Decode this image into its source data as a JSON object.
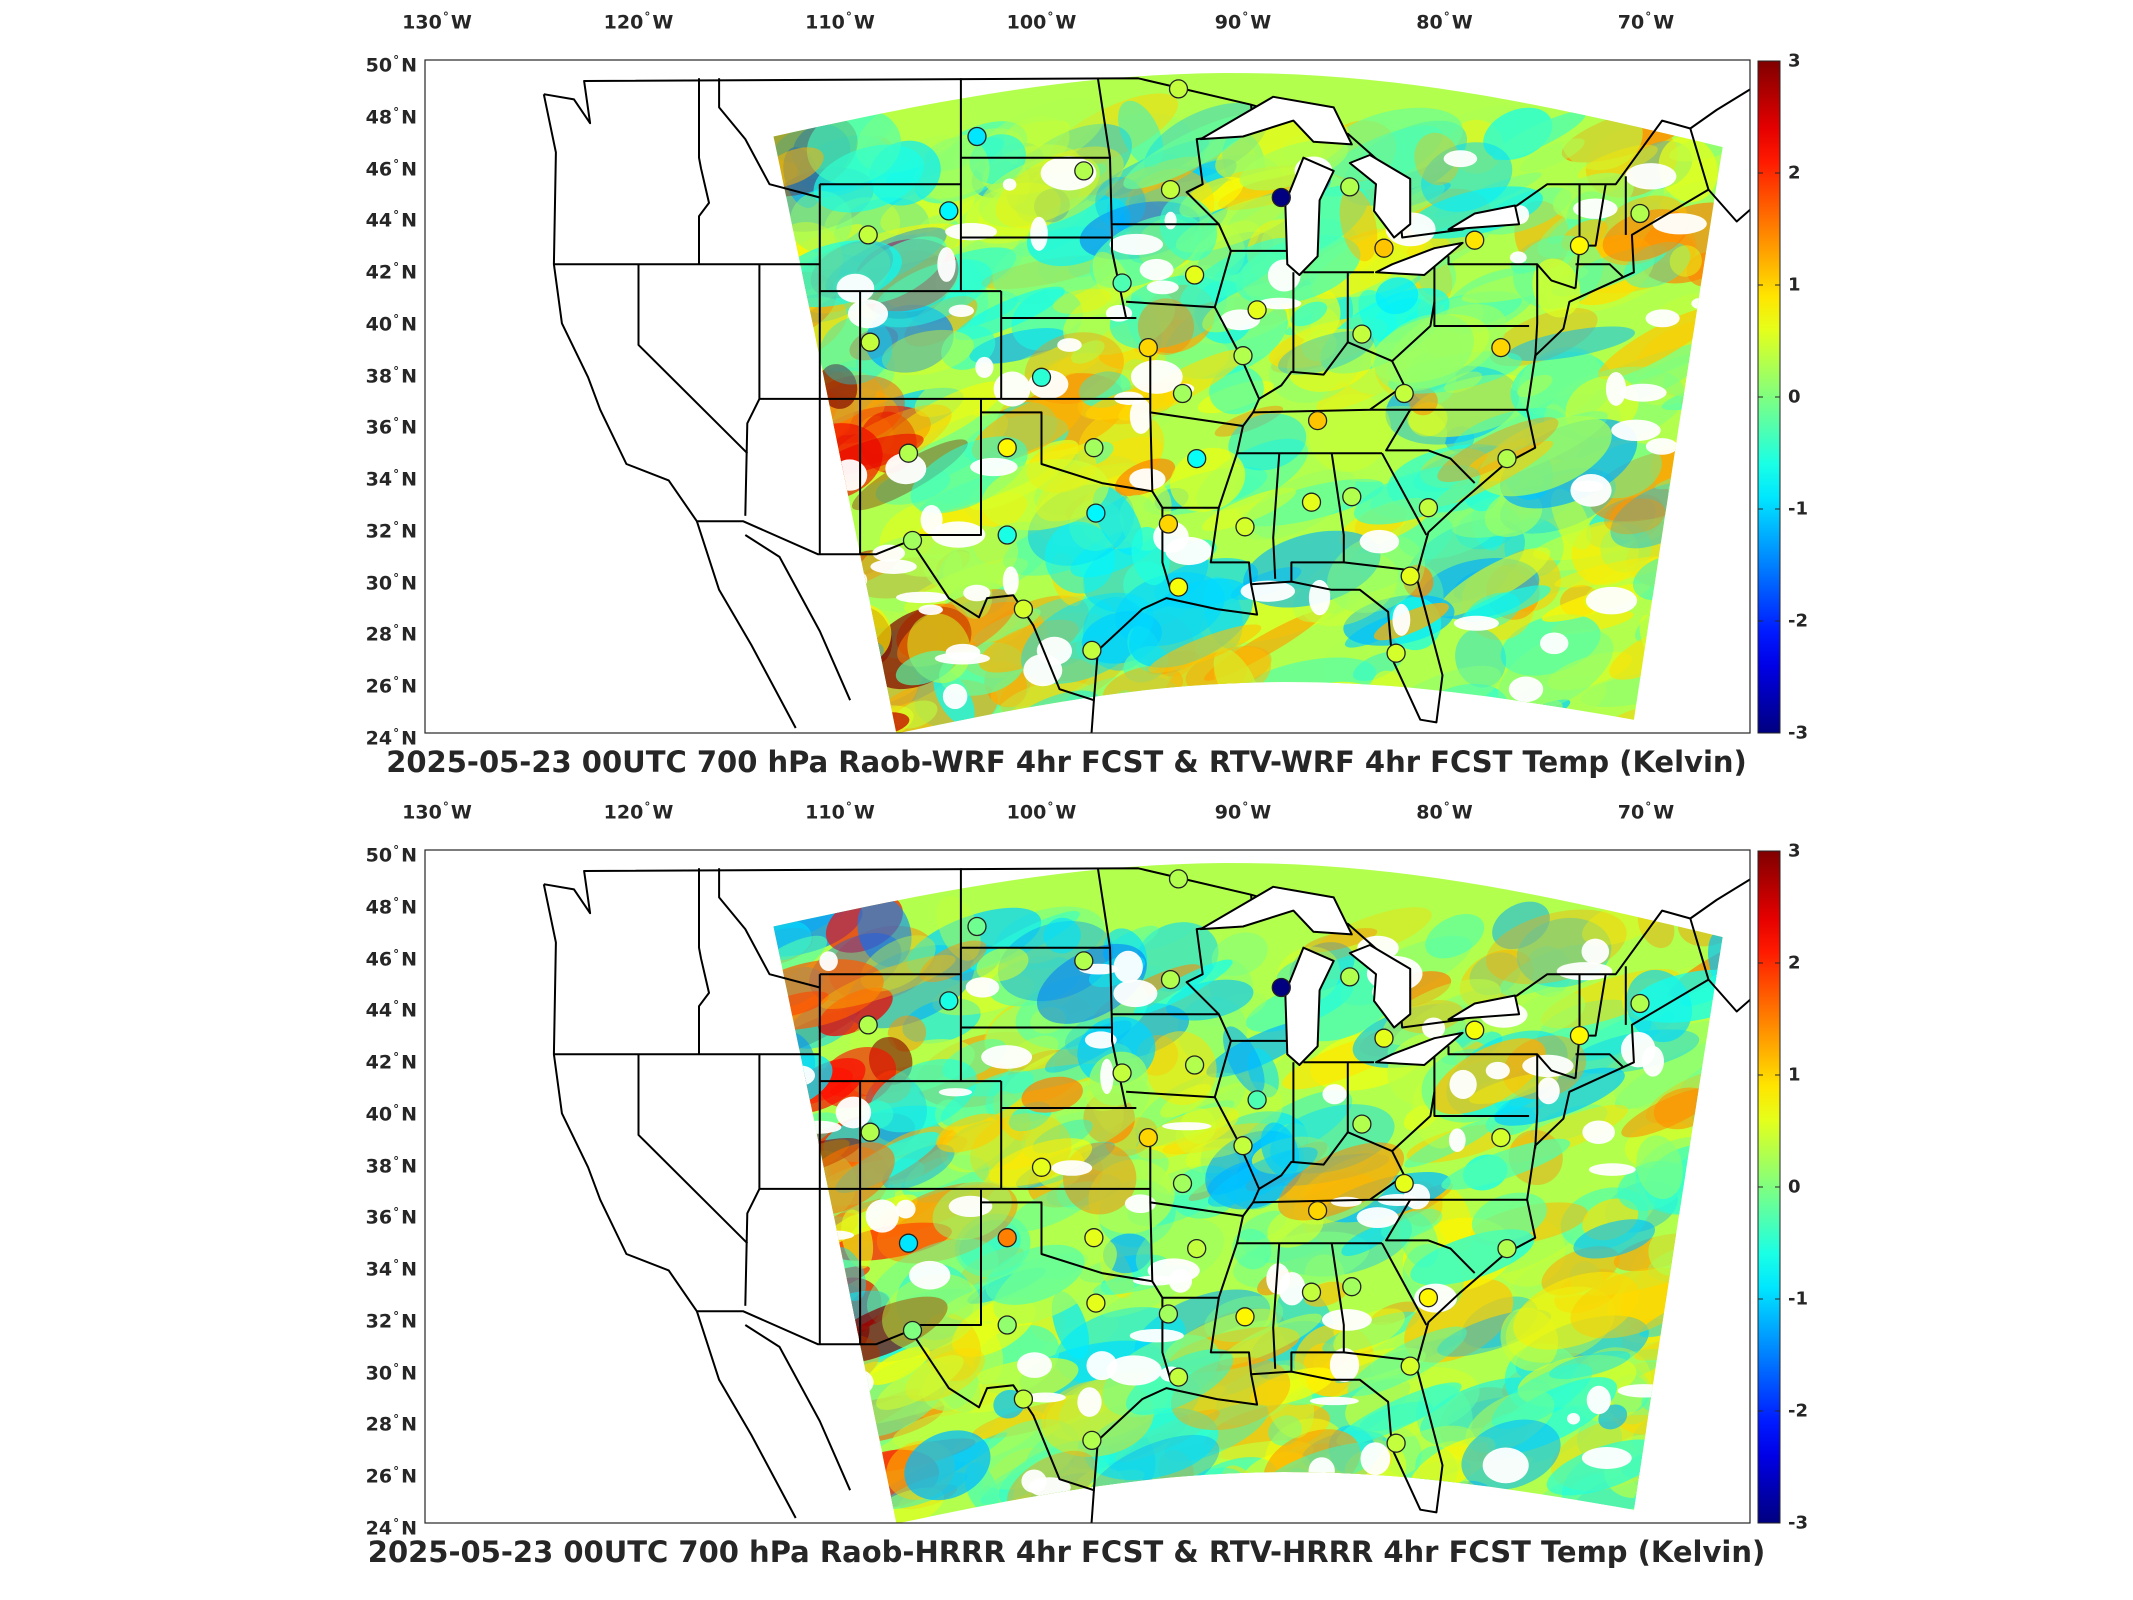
{
  "panels": [
    {
      "id": "wrf",
      "title": "2025-05-23 00UTC 700 hPa Raob-WRF 4hr FCST & RTV-WRF 4hr FCST Temp (Kelvin)",
      "seed": 17
    },
    {
      "id": "hrrr",
      "title": "2025-05-23 00UTC 700 hPa Raob-HRRR 4hr FCST & RTV-HRRR 4hr FCST Temp (Kelvin)",
      "seed": 53
    }
  ],
  "axes": {
    "lon_ticks": [
      {
        "value": -130,
        "label": "130",
        "hemi": "W"
      },
      {
        "value": -120,
        "label": "120",
        "hemi": "W"
      },
      {
        "value": -110,
        "label": "110",
        "hemi": "W"
      },
      {
        "value": -100,
        "label": "100",
        "hemi": "W"
      },
      {
        "value": -90,
        "label": "90",
        "hemi": "W"
      },
      {
        "value": -80,
        "label": "80",
        "hemi": "W"
      },
      {
        "value": -70,
        "label": "70",
        "hemi": "W"
      }
    ],
    "lat_ticks": [
      {
        "value": 50,
        "label": "50",
        "hemi": "N"
      },
      {
        "value": 48,
        "label": "48",
        "hemi": "N"
      },
      {
        "value": 46,
        "label": "46",
        "hemi": "N"
      },
      {
        "value": 44,
        "label": "44",
        "hemi": "N"
      },
      {
        "value": 42,
        "label": "42",
        "hemi": "N"
      },
      {
        "value": 40,
        "label": "40",
        "hemi": "N"
      },
      {
        "value": 38,
        "label": "38",
        "hemi": "N"
      },
      {
        "value": 36,
        "label": "36",
        "hemi": "N"
      },
      {
        "value": 34,
        "label": "34",
        "hemi": "N"
      },
      {
        "value": 32,
        "label": "32",
        "hemi": "N"
      },
      {
        "value": 30,
        "label": "30",
        "hemi": "N"
      },
      {
        "value": 28,
        "label": "28",
        "hemi": "N"
      },
      {
        "value": 26,
        "label": "26",
        "hemi": "N"
      },
      {
        "value": 24,
        "label": "24",
        "hemi": "N"
      }
    ]
  },
  "colorbar": {
    "min": -3,
    "max": 3,
    "colormap": "jet",
    "tick_values": [
      3,
      2,
      1,
      0,
      -1,
      -2,
      -3
    ],
    "tick_labels": [
      "3",
      "2",
      "1",
      "0",
      "-1",
      "-2",
      "-3"
    ]
  },
  "colors": {
    "border": "#000000",
    "marker_edge": "#222222"
  },
  "stations": {
    "wrf": [
      {
        "lon": -103.2,
        "lat": 46.8,
        "value": -0.9
      },
      {
        "lon": -97.9,
        "lat": 45.5,
        "value": 0.3
      },
      {
        "lon": -93.6,
        "lat": 44.8,
        "value": 0.4
      },
      {
        "lon": -88.1,
        "lat": 44.5,
        "value": -3.0
      },
      {
        "lon": -84.7,
        "lat": 44.9,
        "value": 0.3
      },
      {
        "lon": -93.2,
        "lat": 48.6,
        "value": 0.4
      },
      {
        "lon": -108.6,
        "lat": 43.1,
        "value": 0.4
      },
      {
        "lon": -104.6,
        "lat": 44.0,
        "value": -0.8
      },
      {
        "lon": -96.0,
        "lat": 41.3,
        "value": -0.3
      },
      {
        "lon": -92.4,
        "lat": 41.6,
        "value": 0.6
      },
      {
        "lon": -89.3,
        "lat": 40.3,
        "value": 0.6
      },
      {
        "lon": -84.1,
        "lat": 39.4,
        "value": 0.4
      },
      {
        "lon": -83.0,
        "lat": 42.6,
        "value": 1.1
      },
      {
        "lon": -78.5,
        "lat": 42.9,
        "value": 0.9
      },
      {
        "lon": -73.3,
        "lat": 42.7,
        "value": 0.8
      },
      {
        "lon": -70.3,
        "lat": 43.9,
        "value": 0.3
      },
      {
        "lon": -108.5,
        "lat": 39.1,
        "value": 0.4
      },
      {
        "lon": -100.0,
        "lat": 37.8,
        "value": -0.5
      },
      {
        "lon": -94.7,
        "lat": 38.9,
        "value": 1.0
      },
      {
        "lon": -90.0,
        "lat": 38.6,
        "value": 0.3
      },
      {
        "lon": -86.3,
        "lat": 36.2,
        "value": 1.1
      },
      {
        "lon": -82.0,
        "lat": 37.2,
        "value": 0.4
      },
      {
        "lon": -77.2,
        "lat": 38.9,
        "value": 1.0
      },
      {
        "lon": -106.6,
        "lat": 35.0,
        "value": 0.3
      },
      {
        "lon": -101.7,
        "lat": 35.2,
        "value": 0.8
      },
      {
        "lon": -97.4,
        "lat": 35.2,
        "value": 0.2
      },
      {
        "lon": -92.3,
        "lat": 34.8,
        "value": -0.7
      },
      {
        "lon": -93.0,
        "lat": 37.2,
        "value": 0.2
      },
      {
        "lon": -106.4,
        "lat": 31.8,
        "value": 0.2
      },
      {
        "lon": -101.7,
        "lat": 32.0,
        "value": -0.6
      },
      {
        "lon": -97.3,
        "lat": 32.8,
        "value": -0.8
      },
      {
        "lon": -93.7,
        "lat": 32.4,
        "value": 1.0
      },
      {
        "lon": -89.9,
        "lat": 32.3,
        "value": 0.5
      },
      {
        "lon": -86.6,
        "lat": 33.2,
        "value": 0.6
      },
      {
        "lon": -84.6,
        "lat": 33.4,
        "value": 0.3
      },
      {
        "lon": -80.8,
        "lat": 33.0,
        "value": 0.4
      },
      {
        "lon": -76.9,
        "lat": 34.8,
        "value": 0.3
      },
      {
        "lon": -100.9,
        "lat": 29.3,
        "value": 0.5
      },
      {
        "lon": -97.5,
        "lat": 27.8,
        "value": 0.4
      },
      {
        "lon": -93.2,
        "lat": 30.1,
        "value": 0.7
      },
      {
        "lon": -81.7,
        "lat": 30.5,
        "value": 0.6
      },
      {
        "lon": -82.4,
        "lat": 27.7,
        "value": 0.5
      }
    ],
    "hrrr": [
      {
        "lon": -103.2,
        "lat": 46.8,
        "value": -0.1
      },
      {
        "lon": -97.9,
        "lat": 45.5,
        "value": 0.3
      },
      {
        "lon": -93.6,
        "lat": 44.8,
        "value": 0.3
      },
      {
        "lon": -88.1,
        "lat": 44.5,
        "value": -3.0
      },
      {
        "lon": -84.7,
        "lat": 44.9,
        "value": 0.3
      },
      {
        "lon": -93.2,
        "lat": 48.6,
        "value": 0.3
      },
      {
        "lon": -108.6,
        "lat": 43.1,
        "value": 0.3
      },
      {
        "lon": -104.6,
        "lat": 44.0,
        "value": -0.6
      },
      {
        "lon": -96.0,
        "lat": 41.3,
        "value": 0.4
      },
      {
        "lon": -92.4,
        "lat": 41.6,
        "value": 0.3
      },
      {
        "lon": -89.3,
        "lat": 40.3,
        "value": -0.3
      },
      {
        "lon": -84.1,
        "lat": 39.4,
        "value": 0.3
      },
      {
        "lon": -83.0,
        "lat": 42.6,
        "value": 0.6
      },
      {
        "lon": -78.5,
        "lat": 42.9,
        "value": 0.7
      },
      {
        "lon": -73.3,
        "lat": 42.7,
        "value": 0.8
      },
      {
        "lon": -70.3,
        "lat": 43.9,
        "value": 0.3
      },
      {
        "lon": -108.5,
        "lat": 39.1,
        "value": 0.3
      },
      {
        "lon": -100.0,
        "lat": 37.8,
        "value": 0.6
      },
      {
        "lon": -94.7,
        "lat": 38.9,
        "value": 1.0
      },
      {
        "lon": -90.0,
        "lat": 38.6,
        "value": 0.4
      },
      {
        "lon": -86.3,
        "lat": 36.2,
        "value": 1.0
      },
      {
        "lon": -82.0,
        "lat": 37.2,
        "value": 0.6
      },
      {
        "lon": -77.2,
        "lat": 38.9,
        "value": 0.5
      },
      {
        "lon": -106.6,
        "lat": 35.0,
        "value": -0.9
      },
      {
        "lon": -101.7,
        "lat": 35.2,
        "value": 1.5
      },
      {
        "lon": -97.4,
        "lat": 35.2,
        "value": 0.6
      },
      {
        "lon": -92.3,
        "lat": 34.8,
        "value": 0.4
      },
      {
        "lon": -93.0,
        "lat": 37.2,
        "value": 0.2
      },
      {
        "lon": -106.4,
        "lat": 31.8,
        "value": 0.0
      },
      {
        "lon": -101.7,
        "lat": 32.0,
        "value": 0.1
      },
      {
        "lon": -97.3,
        "lat": 32.8,
        "value": 0.6
      },
      {
        "lon": -93.7,
        "lat": 32.4,
        "value": 0.2
      },
      {
        "lon": -89.9,
        "lat": 32.3,
        "value": 0.8
      },
      {
        "lon": -86.6,
        "lat": 33.2,
        "value": 0.4
      },
      {
        "lon": -84.6,
        "lat": 33.4,
        "value": 0.2
      },
      {
        "lon": -80.8,
        "lat": 33.0,
        "value": 0.8
      },
      {
        "lon": -76.9,
        "lat": 34.8,
        "value": 0.3
      },
      {
        "lon": -100.9,
        "lat": 29.3,
        "value": 0.4
      },
      {
        "lon": -97.5,
        "lat": 27.8,
        "value": 0.3
      },
      {
        "lon": -93.2,
        "lat": 30.1,
        "value": 0.4
      },
      {
        "lon": -81.7,
        "lat": 30.5,
        "value": 0.5
      },
      {
        "lon": -82.4,
        "lat": 27.7,
        "value": 0.4
      }
    ]
  }
}
